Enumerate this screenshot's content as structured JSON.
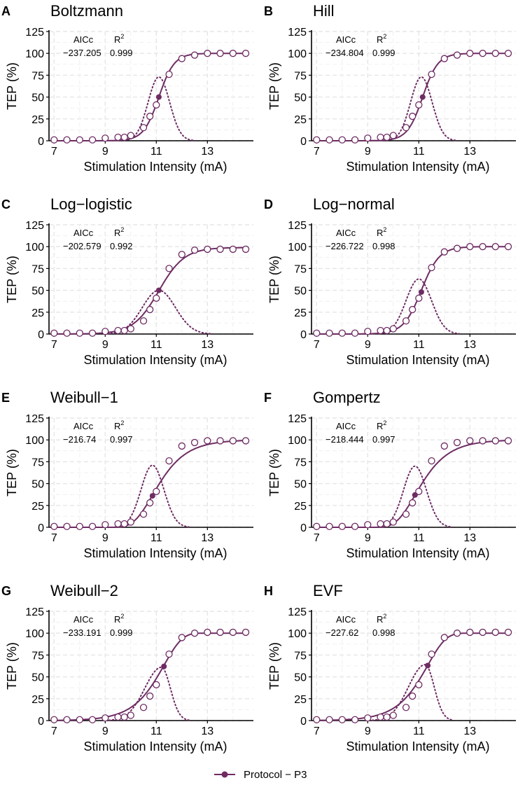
{
  "colors": {
    "curve": "#6e2c63",
    "grid": "#e6e6e6",
    "axis": "#000000"
  },
  "chart_data": [
    {
      "type": "line",
      "letter": "A",
      "title": "Boltzmann",
      "aicc_label": "AICc",
      "r2_label": "R",
      "r2_sup": "2",
      "aicc": "−237.205",
      "r2": "0.999",
      "xlabel": "Stimulation Intensity (mA)",
      "ylabel": "TEP (%)",
      "xlim": [
        6.8,
        14.8
      ],
      "ylim": [
        0,
        125
      ],
      "xticks": [
        "7",
        "9",
        "11",
        "13"
      ],
      "yticks": [
        "0",
        "25",
        "50",
        "75",
        "100",
        "125"
      ],
      "fit": {
        "model": "sigmoid",
        "x50": 11.1,
        "slope": 0.3,
        "top": 100
      },
      "derivative": {
        "center": 11.1,
        "width": 0.42,
        "peak": 73
      },
      "points_x": [
        7,
        7.5,
        8,
        8.5,
        9,
        9.5,
        9.75,
        10,
        10.5,
        10.75,
        11,
        11.5,
        12,
        12.5,
        13,
        13.5,
        14,
        14.5
      ],
      "points_y": [
        1,
        1,
        1,
        1,
        3,
        4,
        4,
        6,
        15,
        28,
        41,
        76,
        94,
        98,
        100,
        100,
        100,
        100
      ],
      "midpoint": [
        11.1,
        50
      ]
    },
    {
      "type": "line",
      "letter": "B",
      "title": "Hill",
      "aicc_label": "AICc",
      "r2_label": "R",
      "r2_sup": "2",
      "aicc": "−234.804",
      "r2": "0.999",
      "xlabel": "Stimulation Intensity (mA)",
      "ylabel": "TEP (%)",
      "xlim": [
        6.8,
        14.8
      ],
      "ylim": [
        0,
        125
      ],
      "xticks": [
        "7",
        "9",
        "11",
        "13"
      ],
      "yticks": [
        "0",
        "25",
        "50",
        "75",
        "100",
        "125"
      ],
      "fit": {
        "model": "sigmoid",
        "x50": 11.15,
        "slope": 0.3,
        "top": 100
      },
      "derivative": {
        "center": 11.1,
        "width": 0.42,
        "peak": 73
      },
      "points_x": [
        7,
        7.5,
        8,
        8.5,
        9,
        9.5,
        9.75,
        10,
        10.5,
        10.75,
        11,
        11.5,
        12,
        12.5,
        13,
        13.5,
        14,
        14.5
      ],
      "points_y": [
        1,
        1,
        1,
        1,
        3,
        4,
        4,
        6,
        15,
        28,
        41,
        76,
        94,
        98,
        100,
        100,
        100,
        100
      ],
      "midpoint": [
        11.15,
        50
      ]
    },
    {
      "type": "line",
      "letter": "C",
      "title": "Log−logistic",
      "aicc_label": "AICc",
      "r2_label": "R",
      "r2_sup": "2",
      "aicc": "−202.579",
      "r2": "0.992",
      "xlabel": "Stimulation Intensity (mA)",
      "ylabel": "TEP (%)",
      "xlim": [
        6.8,
        14.8
      ],
      "ylim": [
        0,
        125
      ],
      "xticks": [
        "7",
        "9",
        "11",
        "13"
      ],
      "yticks": [
        "0",
        "25",
        "50",
        "75",
        "100",
        "125"
      ],
      "fit": {
        "model": "sigmoid",
        "x50": 11.1,
        "slope": 0.5,
        "top": 99
      },
      "derivative": {
        "center": 11.1,
        "width": 0.65,
        "peak": 50
      },
      "points_x": [
        7,
        7.5,
        8,
        8.5,
        9,
        9.5,
        9.75,
        10,
        10.5,
        10.75,
        11,
        11.5,
        12,
        12.5,
        13,
        13.5,
        14,
        14.5
      ],
      "points_y": [
        1,
        1,
        1,
        1,
        3,
        4,
        4,
        6,
        15,
        28,
        41,
        75,
        91,
        96,
        97,
        97,
        97,
        97
      ],
      "midpoint": [
        11.1,
        50
      ]
    },
    {
      "type": "line",
      "letter": "D",
      "title": "Log−normal",
      "aicc_label": "AICc",
      "r2_label": "R",
      "r2_sup": "2",
      "aicc": "−226.722",
      "r2": "0.998",
      "xlabel": "Stimulation Intensity (mA)",
      "ylabel": "TEP (%)",
      "xlim": [
        6.8,
        14.8
      ],
      "ylim": [
        0,
        125
      ],
      "xticks": [
        "7",
        "9",
        "11",
        "13"
      ],
      "yticks": [
        "0",
        "25",
        "50",
        "75",
        "100",
        "125"
      ],
      "fit": {
        "model": "sigmoid",
        "x50": 11.1,
        "slope": 0.35,
        "top": 100
      },
      "derivative": {
        "center": 11.0,
        "width": 0.5,
        "peak": 63
      },
      "points_x": [
        7,
        7.5,
        8,
        8.5,
        9,
        9.5,
        9.75,
        10,
        10.5,
        10.75,
        11,
        11.5,
        12,
        12.5,
        13,
        13.5,
        14,
        14.5
      ],
      "points_y": [
        1,
        1,
        1,
        1,
        3,
        4,
        4,
        6,
        15,
        28,
        41,
        76,
        94,
        98,
        100,
        100,
        100,
        100
      ],
      "midpoint": [
        11.1,
        48
      ]
    },
    {
      "type": "line",
      "letter": "E",
      "title": "Weibull−1",
      "aicc_label": "AICc",
      "r2_label": "R",
      "r2_sup": "2",
      "aicc": "−216.74",
      "r2": "0.997",
      "xlabel": "Stimulation Intensity (mA)",
      "ylabel": "TEP (%)",
      "xlim": [
        6.8,
        14.8
      ],
      "ylim": [
        0,
        125
      ],
      "xticks": [
        "7",
        "9",
        "11",
        "13"
      ],
      "yticks": [
        "0",
        "25",
        "50",
        "75",
        "100",
        "125"
      ],
      "fit": {
        "model": "gompertz",
        "x0": 10.85,
        "rate": 1.35,
        "top": 100
      },
      "derivative": {
        "center": 10.85,
        "width": 0.45,
        "peak": 71
      },
      "points_x": [
        7,
        7.5,
        8,
        8.5,
        9,
        9.5,
        9.75,
        10,
        10.5,
        10.75,
        11,
        11.5,
        12,
        12.5,
        13,
        13.5,
        14,
        14.5
      ],
      "points_y": [
        1,
        1,
        1,
        1,
        3,
        4,
        4,
        6,
        15,
        28,
        41,
        76,
        93,
        97,
        99,
        99,
        99,
        99
      ],
      "midpoint": [
        10.85,
        36
      ]
    },
    {
      "type": "line",
      "letter": "F",
      "title": "Gompertz",
      "aicc_label": "AICc",
      "r2_label": "R",
      "r2_sup": "2",
      "aicc": "−218.444",
      "r2": "0.997",
      "xlabel": "Stimulation Intensity (mA)",
      "ylabel": "TEP (%)",
      "xlim": [
        6.8,
        14.8
      ],
      "ylim": [
        0,
        125
      ],
      "xticks": [
        "7",
        "9",
        "11",
        "13"
      ],
      "yticks": [
        "0",
        "25",
        "50",
        "75",
        "100",
        "125"
      ],
      "fit": {
        "model": "gompertz",
        "x0": 10.85,
        "rate": 1.35,
        "top": 100
      },
      "derivative": {
        "center": 10.85,
        "width": 0.45,
        "peak": 70
      },
      "points_x": [
        7,
        7.5,
        8,
        8.5,
        9,
        9.5,
        9.75,
        10,
        10.5,
        10.75,
        11,
        11.5,
        12,
        12.5,
        13,
        13.5,
        14,
        14.5
      ],
      "points_y": [
        1,
        1,
        1,
        1,
        3,
        4,
        4,
        6,
        15,
        28,
        41,
        76,
        93,
        97,
        99,
        99,
        99,
        99
      ],
      "midpoint": [
        10.85,
        37
      ]
    },
    {
      "type": "line",
      "letter": "G",
      "title": "Weibull−2",
      "aicc_label": "AICc",
      "r2_label": "R",
      "r2_sup": "2",
      "aicc": "−233.191",
      "r2": "0.999",
      "xlabel": "Stimulation Intensity (mA)",
      "ylabel": "TEP (%)",
      "xlim": [
        6.8,
        14.8
      ],
      "ylim": [
        0,
        125
      ],
      "xticks": [
        "7",
        "9",
        "11",
        "13"
      ],
      "yticks": [
        "0",
        "25",
        "50",
        "75",
        "100",
        "125"
      ],
      "fit": {
        "model": "revgompertz",
        "x0": 11.3,
        "rate": 1.4,
        "top": 100
      },
      "derivative": {
        "center": 11.2,
        "peak": 61,
        "lwidth": 0.65,
        "rwidth": 0.35
      },
      "points_x": [
        7,
        7.5,
        8,
        8.5,
        9,
        9.5,
        9.75,
        10,
        10.5,
        10.75,
        11,
        11.5,
        12,
        12.5,
        13,
        13.5,
        14,
        14.5
      ],
      "points_y": [
        1,
        1,
        1,
        1,
        3,
        4,
        4,
        6,
        15,
        28,
        41,
        76,
        95,
        100,
        101,
        101,
        101,
        101
      ],
      "midpoint": [
        11.3,
        62
      ]
    },
    {
      "type": "line",
      "letter": "H",
      "title": "EVF",
      "aicc_label": "AICc",
      "r2_label": "R",
      "r2_sup": "2",
      "aicc": "−227.62",
      "r2": "0.998",
      "xlabel": "Stimulation Intensity (mA)",
      "ylabel": "TEP (%)",
      "xlim": [
        6.8,
        14.8
      ],
      "ylim": [
        0,
        125
      ],
      "xticks": [
        "7",
        "9",
        "11",
        "13"
      ],
      "yticks": [
        "0",
        "25",
        "50",
        "75",
        "100",
        "125"
      ],
      "fit": {
        "model": "revgompertz",
        "x0": 11.35,
        "rate": 1.4,
        "top": 100
      },
      "derivative": {
        "center": 11.25,
        "peak": 64,
        "lwidth": 0.65,
        "rwidth": 0.35
      },
      "points_x": [
        7,
        7.5,
        8,
        8.5,
        9,
        9.5,
        9.75,
        10,
        10.5,
        10.75,
        11,
        11.5,
        12,
        12.5,
        13,
        13.5,
        14,
        14.5
      ],
      "points_y": [
        1,
        1,
        1,
        1,
        3,
        4,
        4,
        6,
        15,
        28,
        41,
        76,
        95,
        100,
        101,
        101,
        101,
        101
      ],
      "midpoint": [
        11.35,
        63
      ]
    }
  ],
  "legend": {
    "label": "Protocol − P3"
  }
}
